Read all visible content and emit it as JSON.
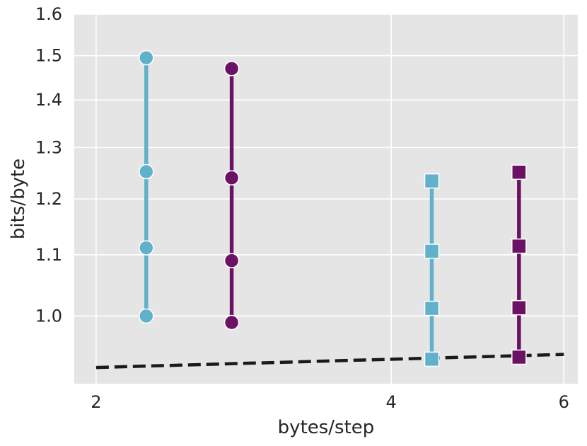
{
  "chart_data": {
    "type": "scatter",
    "title": "",
    "xlabel": "bytes/step",
    "ylabel": "bits/byte",
    "x_scale": "log",
    "y_scale": "log",
    "xlim": [
      1.9,
      6.2
    ],
    "ylim": [
      0.9,
      1.6
    ],
    "x_ticks": [
      2,
      4,
      6
    ],
    "x_tick_labels": [
      "2",
      "4",
      "6"
    ],
    "y_ticks": [
      1.0,
      1.1,
      1.2,
      1.3,
      1.4,
      1.5,
      1.6
    ],
    "y_tick_labels": [
      "1.0",
      "1.1",
      "1.2",
      "1.3",
      "1.4",
      "1.5",
      "1.6"
    ],
    "grid": true,
    "legend": "none",
    "colors": {
      "teal": "#62b1cb",
      "purple": "#6c1264",
      "dashed": "#1a1a1a",
      "plot_bg": "#e5e5e5",
      "grid": "#ffffff"
    },
    "series": [
      {
        "color": "teal",
        "marker": "circle",
        "x": [
          2.25,
          2.25,
          2.25,
          2.25
        ],
        "y": [
          1.495,
          1.252,
          1.112,
          1.0
        ]
      },
      {
        "color": "purple",
        "marker": "circle",
        "x": [
          2.75,
          2.75,
          2.75,
          2.75
        ],
        "y": [
          1.47,
          1.24,
          1.09,
          0.99
        ]
      },
      {
        "color": "teal",
        "marker": "square",
        "x": [
          4.4,
          4.4,
          4.4,
          4.4
        ],
        "y": [
          1.234,
          1.106,
          1.012,
          0.935
        ]
      },
      {
        "color": "purple",
        "marker": "square",
        "x": [
          5.4,
          5.4,
          5.4,
          5.4
        ],
        "y": [
          1.251,
          1.115,
          1.013,
          0.938
        ]
      }
    ],
    "reference_line": {
      "style": "dashed",
      "color": "dashed",
      "x": [
        2.0,
        6.0
      ],
      "y": [
        0.923,
        0.942
      ]
    }
  }
}
